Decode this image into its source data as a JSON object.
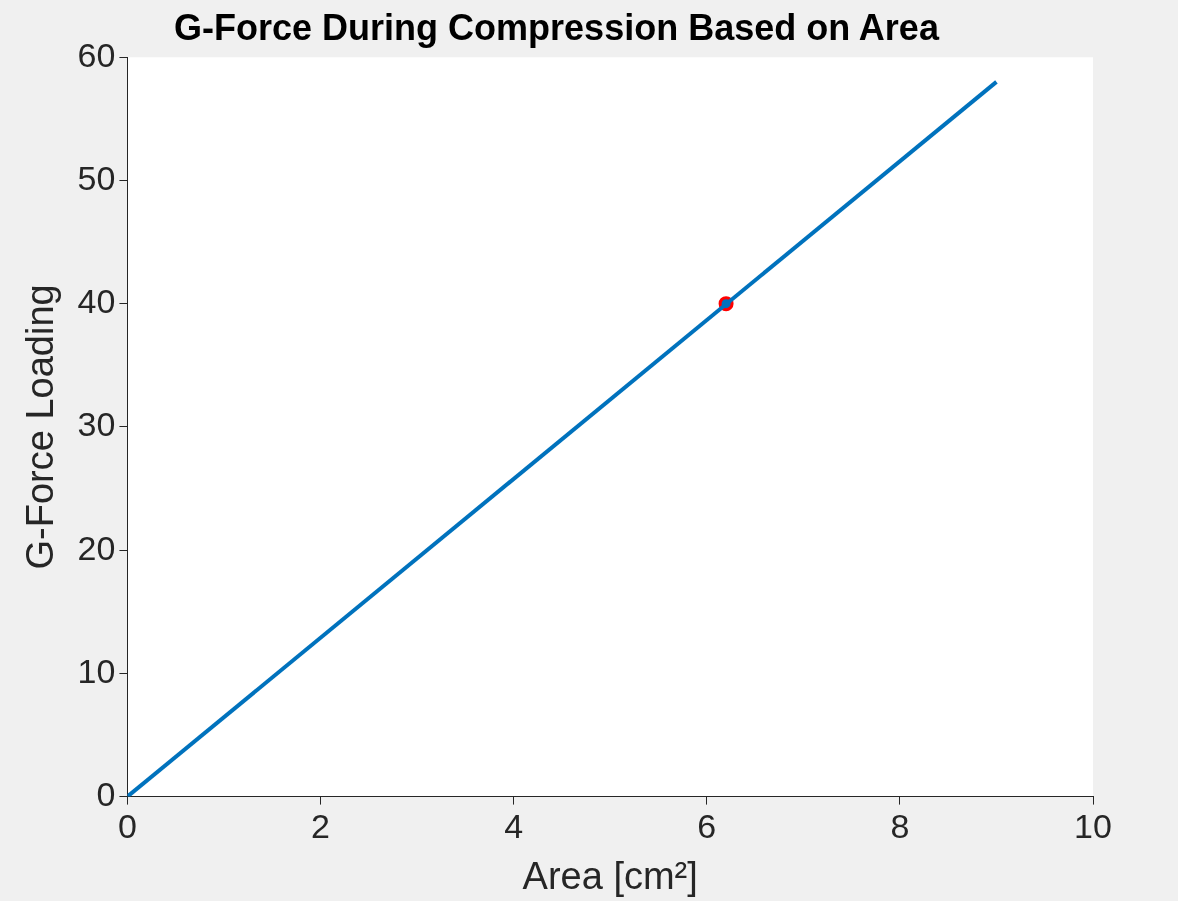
{
  "chart_data": {
    "type": "line",
    "title": "G-Force During Compression Based on Area",
    "xlabel": "Area [cm²]",
    "ylabel": "G-Force Loading",
    "xlim": [
      0,
      10
    ],
    "xticks": [
      0,
      2,
      4,
      6,
      8,
      10
    ],
    "ylim": [
      0,
      60
    ],
    "yticks": [
      0,
      10,
      20,
      30,
      40,
      50,
      60
    ],
    "grid": false,
    "legend": false,
    "series": [
      {
        "color": "#0072bd",
        "x": [
          0,
          9
        ],
        "values": [
          0,
          58
        ],
        "marker": "none"
      },
      {
        "type": "scatter",
        "color": "#ff0000",
        "x": [
          6.2
        ],
        "values": [
          40
        ],
        "marker": "circle"
      }
    ]
  }
}
